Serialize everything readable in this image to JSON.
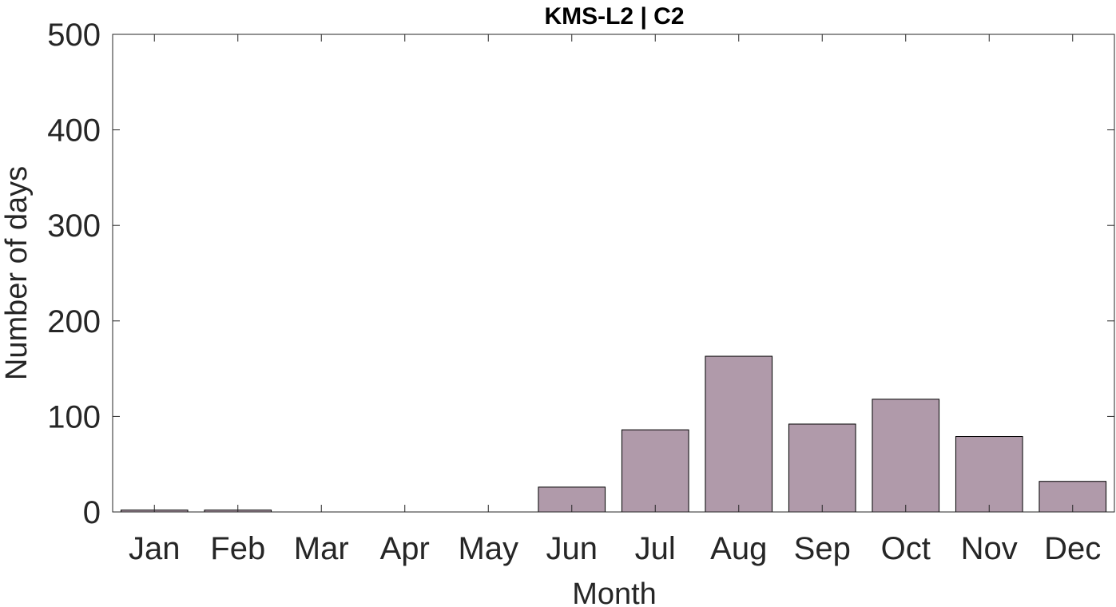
{
  "chart_data": {
    "type": "bar",
    "title": "KMS-L2 | C2",
    "xlabel": "Month",
    "ylabel": "Number of days",
    "categories": [
      "Jan",
      "Feb",
      "Mar",
      "Apr",
      "May",
      "Jun",
      "Jul",
      "Aug",
      "Sep",
      "Oct",
      "Nov",
      "Dec"
    ],
    "values": [
      2,
      2,
      0,
      0,
      0,
      26,
      86,
      163,
      92,
      118,
      79,
      32
    ],
    "ylim": [
      0,
      500
    ],
    "yticks": [
      0,
      100,
      200,
      300,
      400,
      500
    ],
    "grid": false,
    "legend": "none",
    "bar_color": "#b09aaa",
    "edge_color": "#000000",
    "box": true
  }
}
